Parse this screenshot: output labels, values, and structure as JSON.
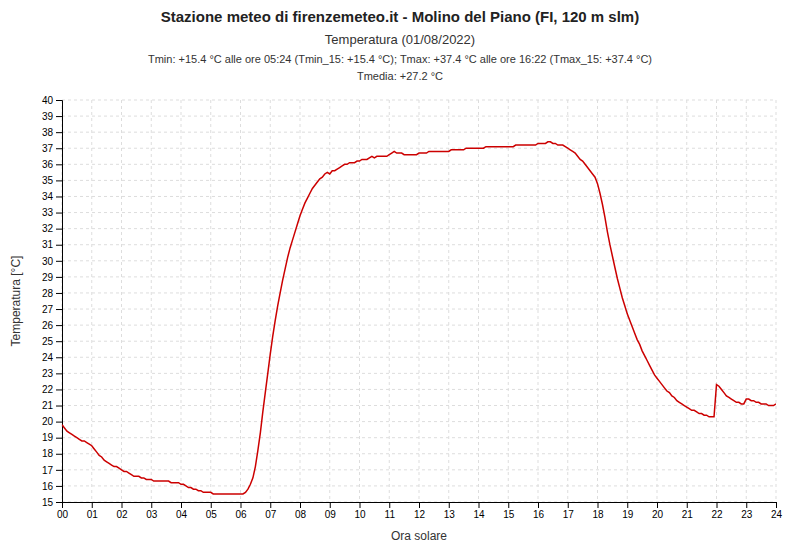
{
  "chart_data": {
    "type": "line",
    "title": "Stazione meteo di firenzemeteo.it - Molino del Piano (FI, 120 m slm)",
    "subtitle": [
      "Temperatura (01/08/2022)",
      "Tmin: +15.4 °C alle ore 05:24 (Tmin_15: +15.4 °C); Tmax: +37.4 °C alle ore 16:22 (Tmax_15: +37.4 °C)",
      "Tmedia: +27.2 °C"
    ],
    "xlabel": "Ora solare",
    "ylabel": "Temperatura [°C]",
    "color": "#cc0000",
    "grid": true,
    "xlim": [
      0,
      24
    ],
    "ylim": [
      15,
      40
    ],
    "xticks": [
      {
        "value": 0,
        "label": "00"
      },
      {
        "value": 1,
        "label": "01"
      },
      {
        "value": 2,
        "label": "02"
      },
      {
        "value": 3,
        "label": "03"
      },
      {
        "value": 4,
        "label": "04"
      },
      {
        "value": 5,
        "label": "05"
      },
      {
        "value": 6,
        "label": "06"
      },
      {
        "value": 7,
        "label": "07"
      },
      {
        "value": 8,
        "label": "08"
      },
      {
        "value": 9,
        "label": "09"
      },
      10,
      11,
      12,
      13,
      14,
      15,
      16,
      17,
      18,
      19,
      20,
      21,
      22,
      23,
      24
    ],
    "yticks": [
      15,
      16,
      17,
      18,
      19,
      20,
      21,
      22,
      23,
      24,
      25,
      26,
      27,
      28,
      29,
      30,
      31,
      32,
      33,
      34,
      35,
      36,
      37,
      38,
      39,
      40
    ],
    "x": [
      0.0,
      0.083,
      0.167,
      0.25,
      0.333,
      0.417,
      0.5,
      0.583,
      0.667,
      0.75,
      0.833,
      0.917,
      1.0,
      1.083,
      1.167,
      1.25,
      1.333,
      1.417,
      1.5,
      1.583,
      1.667,
      1.75,
      1.833,
      1.917,
      2.0,
      2.083,
      2.167,
      2.25,
      2.333,
      2.417,
      2.5,
      2.583,
      2.667,
      2.75,
      2.833,
      2.917,
      3.0,
      3.083,
      3.167,
      3.25,
      3.333,
      3.417,
      3.5,
      3.583,
      3.667,
      3.75,
      3.833,
      3.917,
      4.0,
      4.083,
      4.167,
      4.25,
      4.333,
      4.417,
      4.5,
      4.583,
      4.667,
      4.75,
      4.833,
      4.917,
      5.0,
      5.083,
      5.167,
      5.25,
      5.333,
      5.417,
      5.5,
      5.583,
      5.667,
      5.75,
      5.833,
      5.917,
      6.0,
      6.083,
      6.167,
      6.25,
      6.333,
      6.417,
      6.5,
      6.583,
      6.667,
      6.75,
      6.833,
      6.917,
      7.0,
      7.083,
      7.167,
      7.25,
      7.333,
      7.417,
      7.5,
      7.583,
      7.667,
      7.75,
      7.833,
      7.917,
      8.0,
      8.083,
      8.167,
      8.25,
      8.333,
      8.417,
      8.5,
      8.583,
      8.667,
      8.75,
      8.833,
      8.917,
      9.0,
      9.083,
      9.167,
      9.25,
      9.333,
      9.417,
      9.5,
      9.583,
      9.667,
      9.75,
      9.833,
      9.917,
      10.0,
      10.083,
      10.167,
      10.25,
      10.333,
      10.417,
      10.5,
      10.583,
      10.667,
      10.75,
      10.833,
      10.917,
      11.0,
      11.083,
      11.167,
      11.25,
      11.333,
      11.417,
      11.5,
      11.583,
      11.667,
      11.75,
      11.833,
      11.917,
      12.0,
      12.083,
      12.167,
      12.25,
      12.333,
      12.417,
      12.5,
      12.583,
      12.667,
      12.75,
      12.833,
      12.917,
      13.0,
      13.083,
      13.167,
      13.25,
      13.333,
      13.417,
      13.5,
      13.583,
      13.667,
      13.75,
      13.833,
      13.917,
      14.0,
      14.083,
      14.167,
      14.25,
      14.333,
      14.417,
      14.5,
      14.583,
      14.667,
      14.75,
      14.833,
      14.917,
      15.0,
      15.083,
      15.167,
      15.25,
      15.333,
      15.417,
      15.5,
      15.583,
      15.667,
      15.75,
      15.833,
      15.917,
      16.0,
      16.083,
      16.167,
      16.25,
      16.333,
      16.417,
      16.5,
      16.583,
      16.667,
      16.75,
      16.833,
      16.917,
      17.0,
      17.083,
      17.167,
      17.25,
      17.333,
      17.417,
      17.5,
      17.583,
      17.667,
      17.75,
      17.833,
      17.917,
      18.0,
      18.083,
      18.167,
      18.25,
      18.333,
      18.417,
      18.5,
      18.583,
      18.667,
      18.75,
      18.833,
      18.917,
      19.0,
      19.083,
      19.167,
      19.25,
      19.333,
      19.417,
      19.5,
      19.583,
      19.667,
      19.75,
      19.833,
      19.917,
      20.0,
      20.083,
      20.167,
      20.25,
      20.333,
      20.417,
      20.5,
      20.583,
      20.667,
      20.75,
      20.833,
      20.917,
      21.0,
      21.083,
      21.167,
      21.25,
      21.333,
      21.417,
      21.5,
      21.583,
      21.667,
      21.75,
      21.833,
      21.917,
      22.0,
      22.083,
      22.167,
      22.25,
      22.333,
      22.417,
      22.5,
      22.583,
      22.667,
      22.75,
      22.833,
      22.917,
      23.0,
      23.083,
      23.167,
      23.25,
      23.333,
      23.417,
      23.5,
      23.583,
      23.667,
      23.75,
      23.833,
      23.917,
      24.0
    ],
    "values": [
      19.8,
      19.6,
      19.4,
      19.3,
      19.2,
      19.1,
      19.0,
      18.9,
      18.8,
      18.8,
      18.7,
      18.6,
      18.5,
      18.3,
      18.1,
      17.9,
      17.8,
      17.6,
      17.5,
      17.4,
      17.3,
      17.2,
      17.2,
      17.1,
      17.0,
      16.9,
      16.9,
      16.8,
      16.7,
      16.6,
      16.6,
      16.6,
      16.5,
      16.5,
      16.4,
      16.4,
      16.4,
      16.3,
      16.3,
      16.3,
      16.3,
      16.3,
      16.3,
      16.3,
      16.2,
      16.2,
      16.2,
      16.2,
      16.1,
      16.1,
      16.0,
      15.9,
      15.9,
      15.8,
      15.8,
      15.7,
      15.7,
      15.6,
      15.6,
      15.6,
      15.6,
      15.5,
      15.5,
      15.5,
      15.5,
      15.5,
      15.5,
      15.5,
      15.5,
      15.5,
      15.5,
      15.5,
      15.5,
      15.5,
      15.6,
      15.8,
      16.1,
      16.5,
      17.2,
      18.2,
      19.3,
      20.6,
      21.8,
      23.0,
      24.2,
      25.3,
      26.3,
      27.2,
      28.0,
      28.8,
      29.5,
      30.2,
      30.8,
      31.3,
      31.8,
      32.3,
      32.8,
      33.2,
      33.6,
      33.9,
      34.2,
      34.5,
      34.7,
      34.9,
      35.1,
      35.2,
      35.4,
      35.5,
      35.4,
      35.6,
      35.6,
      35.7,
      35.8,
      35.9,
      36.0,
      36.0,
      36.1,
      36.1,
      36.1,
      36.2,
      36.2,
      36.3,
      36.3,
      36.3,
      36.4,
      36.5,
      36.4,
      36.5,
      36.5,
      36.5,
      36.5,
      36.5,
      36.6,
      36.7,
      36.8,
      36.7,
      36.7,
      36.7,
      36.6,
      36.6,
      36.6,
      36.6,
      36.6,
      36.6,
      36.7,
      36.7,
      36.7,
      36.7,
      36.8,
      36.8,
      36.8,
      36.8,
      36.8,
      36.8,
      36.8,
      36.8,
      36.8,
      36.9,
      36.9,
      36.9,
      36.9,
      36.9,
      36.9,
      37.0,
      37.0,
      37.0,
      37.0,
      37.0,
      37.0,
      37.0,
      37.0,
      37.1,
      37.1,
      37.1,
      37.1,
      37.1,
      37.1,
      37.1,
      37.1,
      37.1,
      37.1,
      37.1,
      37.1,
      37.2,
      37.2,
      37.2,
      37.2,
      37.2,
      37.2,
      37.2,
      37.2,
      37.2,
      37.3,
      37.3,
      37.3,
      37.3,
      37.4,
      37.4,
      37.3,
      37.3,
      37.2,
      37.2,
      37.2,
      37.1,
      37.0,
      36.9,
      36.8,
      36.7,
      36.5,
      36.3,
      36.2,
      36.0,
      35.8,
      35.6,
      35.4,
      35.2,
      34.8,
      34.2,
      33.5,
      32.7,
      31.8,
      31.0,
      30.3,
      29.6,
      28.9,
      28.3,
      27.7,
      27.2,
      26.7,
      26.3,
      25.9,
      25.5,
      25.1,
      24.8,
      24.4,
      24.1,
      23.8,
      23.5,
      23.2,
      22.9,
      22.7,
      22.5,
      22.3,
      22.1,
      21.9,
      21.8,
      21.6,
      21.5,
      21.3,
      21.2,
      21.1,
      21.0,
      20.9,
      20.8,
      20.7,
      20.7,
      20.6,
      20.5,
      20.5,
      20.4,
      20.4,
      20.3,
      20.3,
      20.3,
      22.3,
      22.2,
      22.0,
      21.8,
      21.6,
      21.5,
      21.4,
      21.3,
      21.2,
      21.2,
      21.1,
      21.1,
      21.4,
      21.4,
      21.3,
      21.3,
      21.2,
      21.2,
      21.1,
      21.1,
      21.1,
      21.0,
      21.0,
      21.0,
      21.1
    ]
  }
}
